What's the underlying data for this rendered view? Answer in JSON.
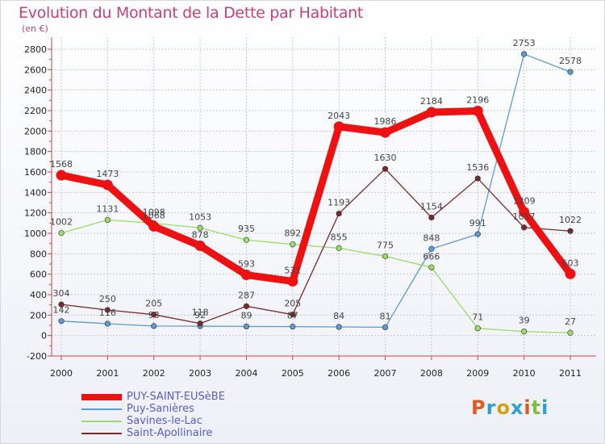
{
  "title": "Evolution du Montant de la Dette par Habitant",
  "unit_label": "(en €)",
  "logo": {
    "letters": [
      "P",
      "r",
      "o",
      "x",
      "i",
      "t",
      "i"
    ],
    "colors": [
      "#e05a1f",
      "#2e9fd6",
      "#d4a017",
      "#2e9fd6",
      "#e05a1f",
      "#7fbf3f",
      "#2e9fd6"
    ]
  },
  "chart_data": {
    "type": "line",
    "x": [
      "2000",
      "2001",
      "2002",
      "2003",
      "2004",
      "2005",
      "2006",
      "2007",
      "2008",
      "2009",
      "2010",
      "2011"
    ],
    "ylim": [
      -200,
      2800
    ],
    "yticks": [
      "-200",
      "0",
      "200",
      "400",
      "600",
      "800",
      "1000",
      "1200",
      "1400",
      "1600",
      "1800",
      "2000",
      "2200",
      "2400",
      "2600",
      "2800"
    ],
    "grid": true,
    "legend_position": "bottom-left",
    "series": [
      {
        "name": "PUY-SAINT-EUSèBE",
        "color": "#ee1111",
        "values": [
          1568,
          1473,
          1068,
          878,
          593,
          531,
          2043,
          1986,
          2184,
          2196,
          1209,
          603
        ],
        "labels": [
          "1568",
          "1473",
          "1068",
          "878",
          "593",
          "531",
          "2043",
          "1986",
          "2184",
          "2196",
          "1209",
          "603"
        ]
      },
      {
        "name": "Puy-Sanières",
        "color": "#5b9bd5",
        "values": [
          142,
          116,
          93,
          92,
          89,
          87,
          84,
          81,
          848,
          991,
          2753,
          2578
        ],
        "labels": [
          "142",
          "116",
          "93",
          "92",
          "89",
          "87",
          "84",
          "81",
          "848",
          "991",
          "2753",
          "2578"
        ]
      },
      {
        "name": "Savines-le-Lac",
        "color": "#99dd66",
        "values": [
          1002,
          1131,
          1098,
          1053,
          935,
          892,
          855,
          775,
          666,
          71,
          39,
          27
        ],
        "labels": [
          "1002",
          "1131",
          "1098",
          "1053",
          "935",
          "892",
          "855",
          "775",
          "666",
          "71",
          "39",
          "27"
        ]
      },
      {
        "name": "Saint-Apollinaire",
        "color": "#7a2a2a",
        "values": [
          304,
          250,
          205,
          118,
          287,
          205,
          1193,
          1630,
          1154,
          1536,
          1057,
          1022
        ],
        "labels": [
          "304",
          "250",
          "205",
          "118",
          "287",
          "205",
          "1193",
          "1630",
          "1154",
          "1536",
          "1057",
          "1022"
        ]
      }
    ]
  }
}
